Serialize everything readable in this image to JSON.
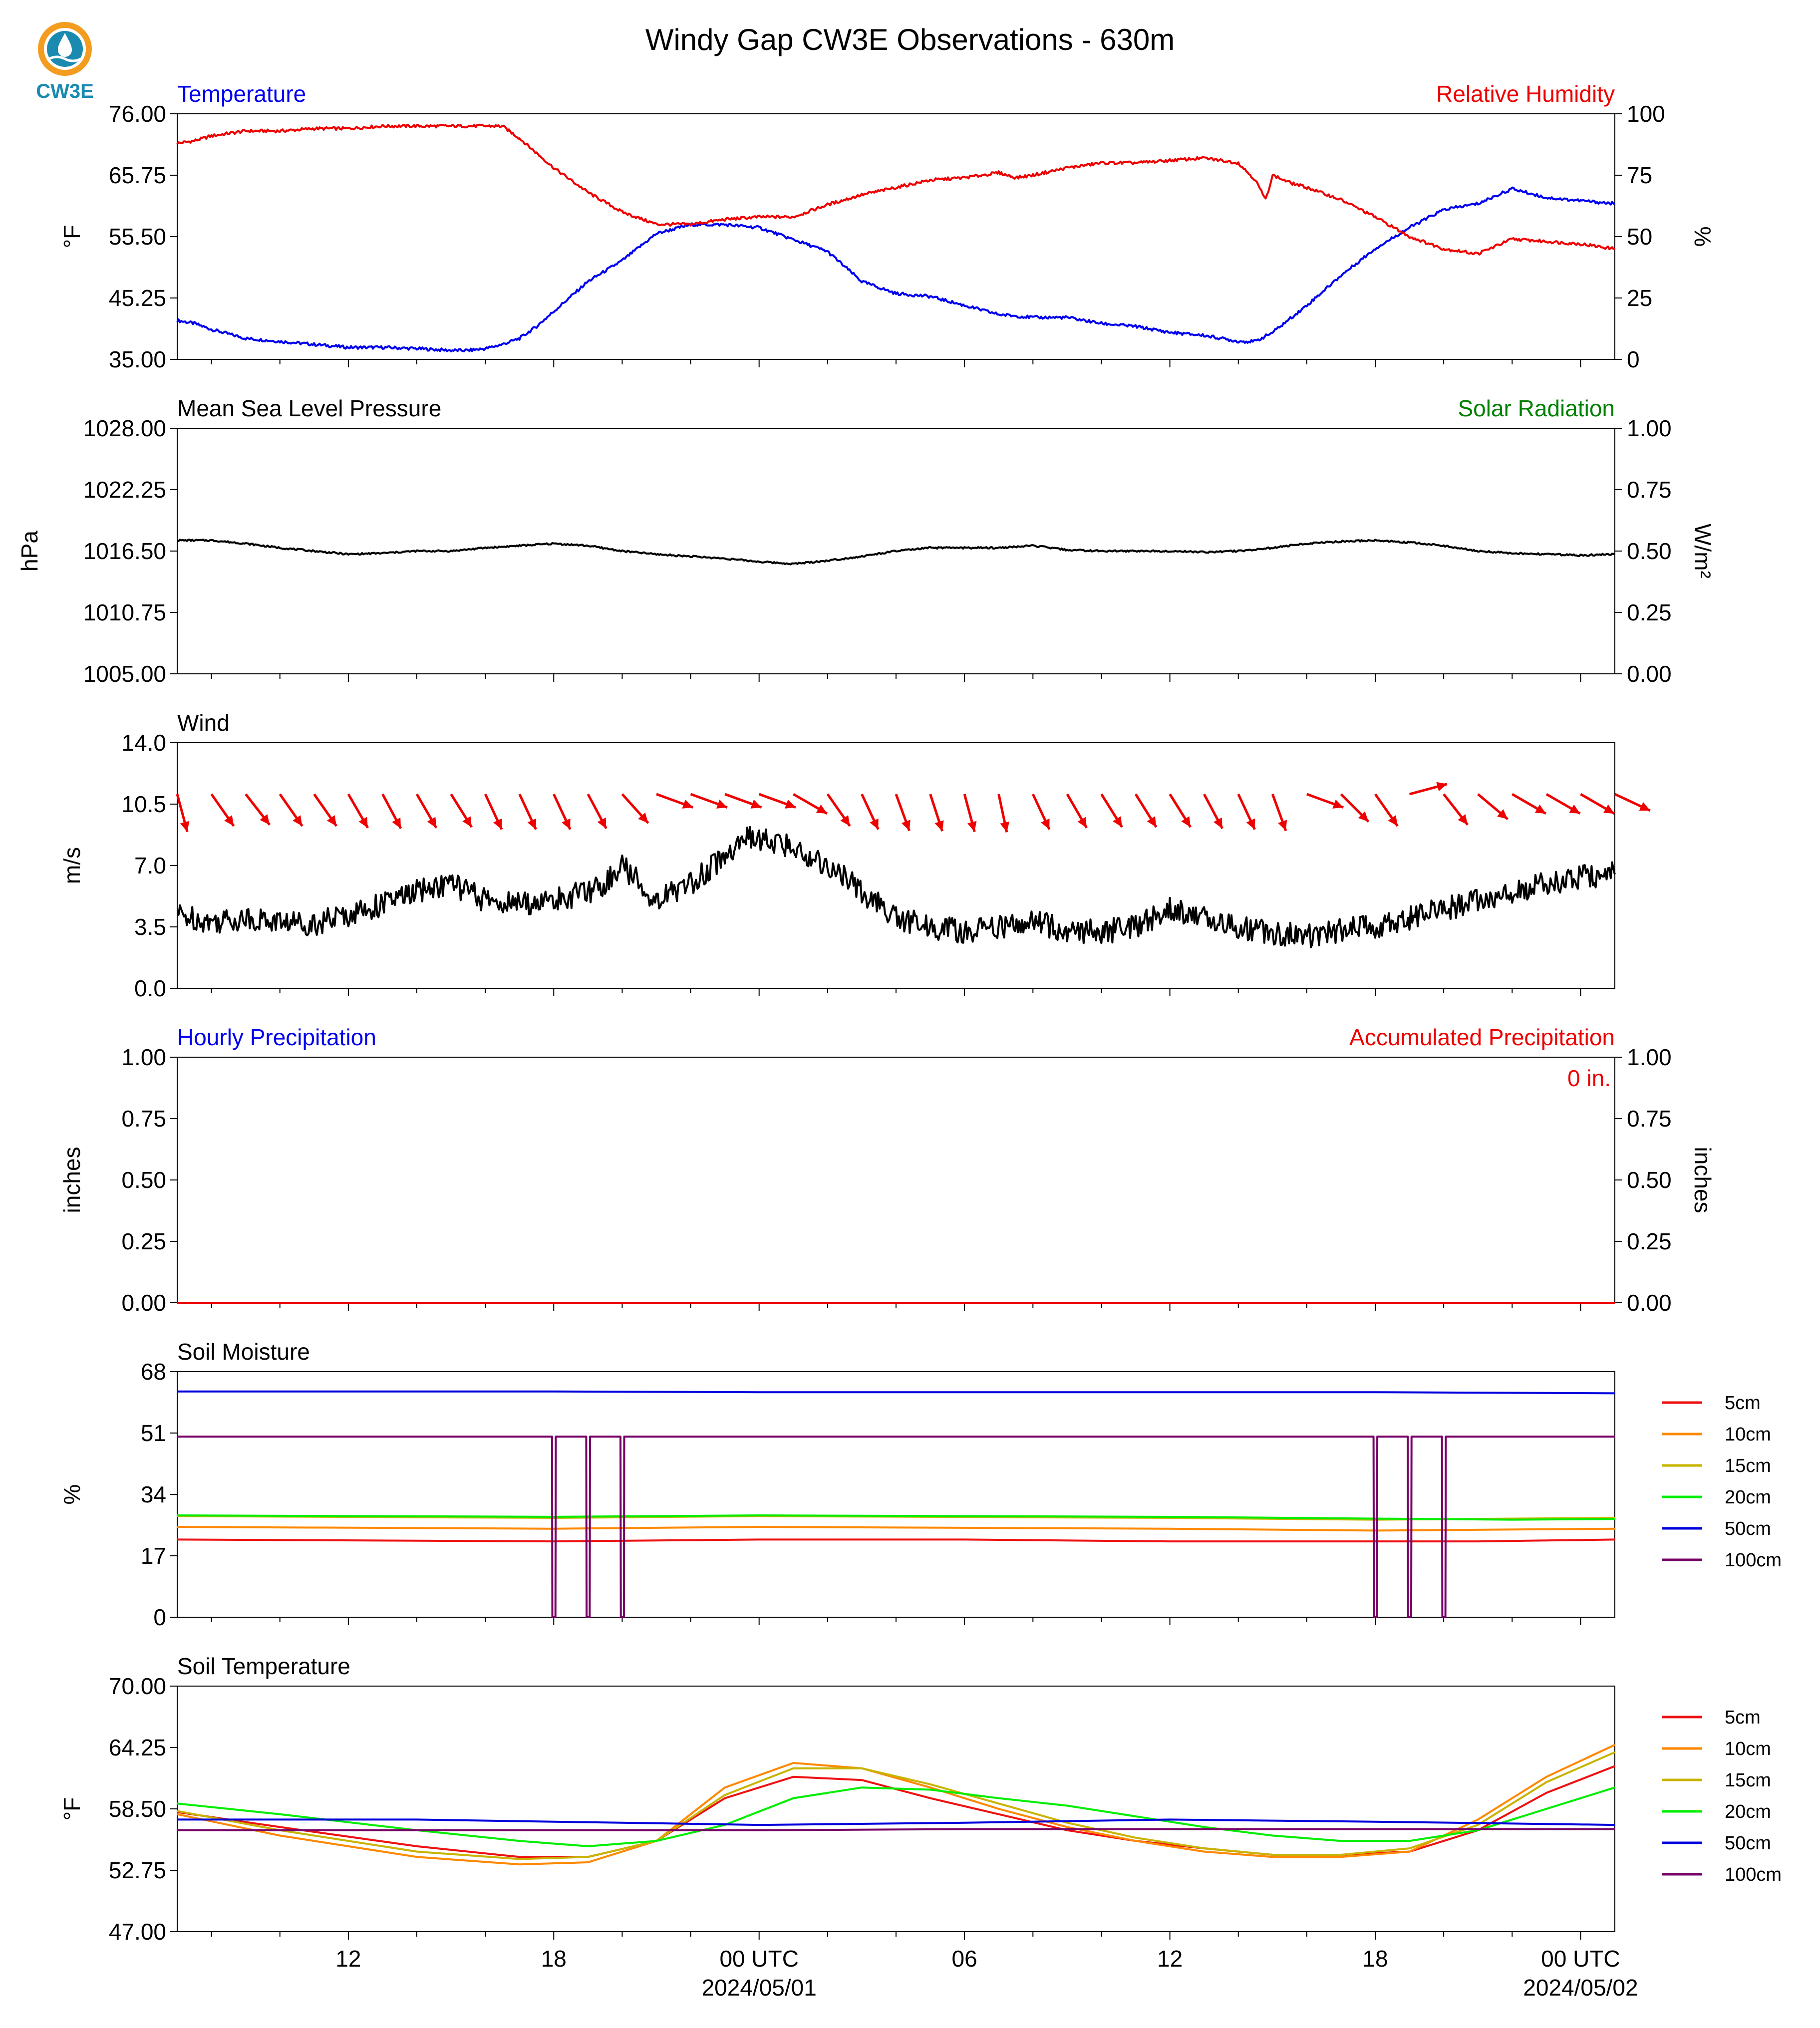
{
  "title": "Windy Gap CW3E Observations - 630m",
  "logo_text": "CW3E",
  "x_ticks": [
    {
      "hour": 12,
      "label": "12"
    },
    {
      "hour": 18,
      "label": "18"
    },
    {
      "hour": 24,
      "label": "00 UTC",
      "sublabel": "2024/05/01"
    },
    {
      "hour": 30,
      "label": "06"
    },
    {
      "hour": 36,
      "label": "12"
    },
    {
      "hour": 42,
      "label": "18"
    },
    {
      "hour": 48,
      "label": "00 UTC",
      "sublabel": "2024/05/02"
    }
  ],
  "time_axis": {
    "start_hour": 7,
    "end_hour": 49,
    "unit": "hours UTC since 2024-04-30 00:00"
  },
  "colors": {
    "blue": "#0000ee",
    "red": "#ee0000",
    "green": "#008000",
    "black": "#000000",
    "s5": "#ee1111",
    "s10": "#ff8800",
    "s15": "#c8b400",
    "s20": "#00ee00",
    "s50": "#0000dd",
    "s100": "#770066"
  },
  "chart_data": [
    {
      "id": "temp_rh",
      "type": "line",
      "left_title": "Temperature",
      "right_title": "Relative Humidity",
      "ylabel": "°F",
      "ylabel_right": "%",
      "ylim": [
        35,
        76
      ],
      "ylim_right": [
        0,
        100
      ],
      "yticks": [
        "76.00",
        "65.75",
        "55.50",
        "45.25",
        "35.00"
      ],
      "yticks_right": [
        "100",
        "75",
        "50",
        "25",
        "0"
      ],
      "series": [
        {
          "axis": "left",
          "color": "blue",
          "x": [
            7,
            7.5,
            8,
            9,
            10,
            11,
            12,
            13,
            14,
            15,
            15.5,
            16,
            16.5,
            17,
            17.5,
            18,
            19,
            20,
            21,
            22,
            23,
            24,
            25,
            25.5,
            26,
            27,
            28,
            29,
            30,
            31,
            32,
            33,
            34,
            35,
            36,
            37,
            37.5,
            38,
            38.5,
            39,
            40,
            41,
            42,
            43,
            44,
            45,
            46,
            47,
            48,
            49
          ],
          "y": [
            41.5,
            41,
            40,
            38.5,
            38,
            37.5,
            37,
            37,
            36.8,
            36.5,
            36.5,
            36.8,
            37.5,
            38.5,
            40.5,
            43,
            48,
            51.5,
            56,
            57.5,
            57.5,
            57,
            55,
            54,
            53,
            48,
            46,
            45.5,
            44,
            42.5,
            42,
            42,
            41,
            40.5,
            39.5,
            39,
            38.5,
            38,
            38,
            39.5,
            44,
            49,
            53.5,
            57,
            60,
            61,
            63.5,
            62,
            61.5,
            61
          ]
        },
        {
          "axis": "right",
          "color": "red",
          "x": [
            7,
            7.5,
            8,
            9,
            10,
            11,
            12,
            13,
            14,
            15,
            16,
            16.5,
            17,
            17.5,
            18,
            19,
            19.5,
            20,
            21,
            22,
            23,
            24,
            25,
            26,
            27,
            28,
            29,
            30,
            31,
            31.5,
            32,
            33,
            34,
            35,
            36,
            37,
            38,
            38.5,
            38.8,
            39,
            39.5,
            40,
            41,
            42,
            43,
            44,
            45,
            46,
            47,
            48,
            49
          ],
          "y": [
            88,
            89,
            91,
            93,
            93,
            94,
            94,
            95,
            95,
            95,
            95,
            95,
            90,
            84,
            78,
            68,
            64,
            60,
            55,
            55,
            57,
            58,
            58,
            63,
            67,
            70,
            73,
            74,
            76,
            74,
            75,
            78,
            80,
            80,
            81,
            82,
            80,
            73,
            65,
            75,
            72,
            70,
            65,
            58,
            50,
            45,
            43,
            49,
            48,
            47,
            45
          ]
        }
      ]
    },
    {
      "id": "pressure",
      "type": "line",
      "left_title": "Mean Sea Level Pressure",
      "right_title": "Solar Radiation",
      "ylabel": "hPa",
      "ylabel_right": "W/m²",
      "ylim": [
        1005,
        1028
      ],
      "ylim_right": [
        0,
        1
      ],
      "yticks": [
        "1028.00",
        "1022.25",
        "1016.50",
        "1010.75",
        "1005.00"
      ],
      "yticks_right": [
        "1.00",
        "0.75",
        "0.50",
        "0.25",
        "0.00"
      ],
      "series": [
        {
          "axis": "left",
          "color": "black",
          "x": [
            7,
            8,
            9,
            10,
            11,
            12,
            13,
            14,
            15,
            16,
            17,
            18,
            19,
            20,
            21,
            22,
            23,
            24,
            25,
            26,
            27,
            28,
            29,
            30,
            31,
            32,
            33,
            34,
            35,
            36,
            37,
            38,
            39,
            40,
            41,
            42,
            43,
            44,
            45,
            46,
            47,
            48,
            49
          ],
          "y": [
            1017.5,
            1017.5,
            1017.2,
            1016.8,
            1016.5,
            1016.2,
            1016.3,
            1016.5,
            1016.5,
            1016.8,
            1017,
            1017.2,
            1017,
            1016.5,
            1016.2,
            1016,
            1015.8,
            1015.5,
            1015.3,
            1015.6,
            1016,
            1016.5,
            1016.8,
            1016.8,
            1016.8,
            1017,
            1016.6,
            1016.5,
            1016.5,
            1016.5,
            1016.4,
            1016.5,
            1016.8,
            1017.2,
            1017.4,
            1017.5,
            1017.3,
            1017,
            1016.5,
            1016.3,
            1016.2,
            1016.1,
            1016.2
          ]
        }
      ]
    },
    {
      "id": "wind",
      "type": "line",
      "left_title": "Wind",
      "ylabel": "m/s",
      "ylim": [
        0,
        14
      ],
      "yticks": [
        "14.0",
        "10.5",
        "7.0",
        "3.5",
        "0.0"
      ],
      "series": [
        {
          "axis": "left",
          "color": "black",
          "x": [
            7,
            8,
            9,
            10,
            11,
            12,
            13,
            14,
            15,
            16,
            17,
            18,
            19,
            19.5,
            20,
            21,
            22,
            23,
            23.5,
            24,
            25,
            26,
            27,
            28,
            29,
            30,
            31,
            32,
            33,
            34,
            35,
            36,
            37,
            38,
            39,
            40,
            41,
            42,
            43,
            44,
            45,
            46,
            47,
            48,
            49
          ],
          "y": [
            4.2,
            3.8,
            4,
            3.8,
            3.7,
            4.2,
            4.8,
            5.5,
            6,
            5,
            4.8,
            5,
            5.5,
            6,
            7,
            5,
            6,
            7.5,
            8.5,
            8.5,
            8,
            7,
            5.5,
            4,
            3.5,
            3.2,
            3.5,
            3.8,
            3.3,
            3.2,
            3.5,
            4.5,
            4,
            3.5,
            3.2,
            3,
            3.3,
            3.5,
            4,
            4.5,
            5,
            5.5,
            6,
            6.3,
            6.5
          ]
        }
      ],
      "barbs": {
        "y": 10.5,
        "x": [
          7,
          8,
          9,
          10,
          11,
          12,
          13,
          14,
          15,
          16,
          17,
          18,
          19,
          20,
          21,
          22,
          23,
          24,
          25,
          26,
          27,
          28,
          29,
          30,
          31,
          32,
          33,
          34,
          35,
          36,
          37,
          38,
          39,
          40,
          41,
          42,
          43,
          44,
          45,
          46,
          47,
          48,
          49
        ],
        "dir": [
          75,
          55,
          52,
          55,
          55,
          60,
          62,
          60,
          58,
          65,
          65,
          65,
          62,
          48,
          20,
          20,
          20,
          20,
          30,
          55,
          65,
          70,
          72,
          75,
          78,
          65,
          60,
          58,
          58,
          58,
          62,
          65,
          70,
          20,
          45,
          55,
          -15,
          52,
          40,
          30,
          30,
          30,
          25
        ]
      }
    },
    {
      "id": "precip",
      "type": "line",
      "left_title": "Hourly Precipitation",
      "right_title": "Accumulated Precipitation",
      "ylabel": "inches",
      "ylabel_right": "inches",
      "ylim": [
        0,
        1
      ],
      "ylim_right": [
        0,
        1
      ],
      "yticks": [
        "1.00",
        "0.75",
        "0.50",
        "0.25",
        "0.00"
      ],
      "yticks_right": [
        "1.00",
        "0.75",
        "0.50",
        "0.25",
        "0.00"
      ],
      "annotation": "0 in.",
      "series": [
        {
          "axis": "left",
          "color": "red",
          "x": [
            7,
            49
          ],
          "y": [
            0,
            0
          ]
        }
      ]
    },
    {
      "id": "soil_moisture",
      "type": "line",
      "left_title": "Soil Moisture",
      "ylabel": "%",
      "ylim": [
        0,
        68
      ],
      "yticks": [
        "68",
        "51",
        "34",
        "17",
        "0"
      ],
      "legend": [
        "5cm",
        "10cm",
        "15cm",
        "20cm",
        "50cm",
        "100cm"
      ],
      "series": [
        {
          "name": "5cm",
          "color": "s5",
          "x": [
            7,
            18,
            24,
            30,
            36,
            42,
            45,
            49
          ],
          "y": [
            21.5,
            21,
            21.5,
            21.5,
            21,
            21,
            21,
            21.5
          ]
        },
        {
          "name": "10cm",
          "color": "s10",
          "x": [
            7,
            18,
            24,
            36,
            42,
            49
          ],
          "y": [
            25,
            24.5,
            25,
            24.5,
            24,
            24.5
          ]
        },
        {
          "name": "15cm",
          "color": "s15",
          "x": [
            7,
            18,
            24,
            36,
            42,
            49
          ],
          "y": [
            28,
            27.5,
            28,
            27.5,
            27,
            27.5
          ]
        },
        {
          "name": "20cm",
          "color": "s20",
          "x": [
            7,
            18,
            24,
            36,
            42,
            46,
            49
          ],
          "y": [
            28.2,
            27.8,
            28.2,
            27.8,
            27.3,
            27,
            27.2
          ]
        },
        {
          "name": "50cm",
          "color": "s50",
          "x": [
            7,
            18,
            24,
            36,
            42,
            49
          ],
          "y": [
            62.5,
            62.5,
            62.3,
            62.3,
            62.3,
            62
          ]
        },
        {
          "name": "100cm",
          "color": "s100",
          "x": [
            7,
            17.95,
            17.96,
            18.05,
            18.06,
            18.95,
            18.96,
            19.05,
            19.06,
            19.95,
            19.96,
            20.05,
            20.06,
            41.95,
            41.96,
            42.05,
            42.06,
            42.95,
            42.96,
            43.05,
            43.06,
            43.95,
            43.96,
            44.05,
            44.06,
            49
          ],
          "y": [
            50,
            50,
            0,
            0,
            50,
            50,
            0,
            0,
            50,
            50,
            0,
            0,
            50,
            50,
            0,
            0,
            50,
            50,
            0,
            0,
            50,
            50,
            0,
            0,
            50,
            50
          ]
        }
      ]
    },
    {
      "id": "soil_temp",
      "type": "line",
      "left_title": "Soil Temperature",
      "ylabel": "°F",
      "ylim": [
        47,
        70
      ],
      "yticks": [
        "70.00",
        "64.25",
        "58.50",
        "52.75",
        "47.00"
      ],
      "legend": [
        "5cm",
        "10cm",
        "15cm",
        "20cm",
        "50cm",
        "100cm"
      ],
      "series": [
        {
          "name": "5cm",
          "color": "s5",
          "x": [
            7,
            10,
            14,
            17,
            19,
            21,
            23,
            25,
            27,
            29,
            31,
            33,
            35,
            37,
            39,
            41,
            43,
            45,
            47,
            49
          ],
          "y": [
            58.2,
            56.8,
            55,
            54,
            54,
            55.5,
            59.5,
            61.5,
            61.2,
            59.5,
            58,
            56.5,
            55.5,
            54.8,
            54.2,
            54.2,
            54.5,
            56.5,
            60,
            62.5
          ]
        },
        {
          "name": "10cm",
          "color": "s10",
          "x": [
            7,
            10,
            14,
            17,
            19,
            21,
            23,
            25,
            27,
            29,
            31,
            33,
            35,
            37,
            39,
            41,
            43,
            45,
            47,
            49
          ],
          "y": [
            58,
            56,
            54,
            53.3,
            53.5,
            55.5,
            60.5,
            62.8,
            62.3,
            60.5,
            58.5,
            56.8,
            55.5,
            54.5,
            54,
            54,
            54.5,
            57.5,
            61.5,
            64.5
          ]
        },
        {
          "name": "15cm",
          "color": "s15",
          "x": [
            7,
            10,
            14,
            17,
            19,
            21,
            23,
            25,
            27,
            29,
            31,
            33,
            35,
            37,
            39,
            41,
            43,
            45,
            47,
            49
          ],
          "y": [
            58.3,
            56.5,
            54.5,
            53.8,
            54,
            55.5,
            59.8,
            62.3,
            62.3,
            60.8,
            59,
            57.2,
            55.8,
            54.8,
            54.2,
            54.2,
            54.8,
            57,
            61,
            63.8
          ]
        },
        {
          "name": "20cm",
          "color": "s20",
          "x": [
            7,
            10,
            14,
            17,
            19,
            21,
            23,
            25,
            27,
            29,
            31,
            33,
            35,
            37,
            39,
            41,
            43,
            45,
            47,
            49
          ],
          "y": [
            59,
            58,
            56.5,
            55.5,
            55,
            55.5,
            57,
            59.5,
            60.5,
            60.3,
            59.5,
            58.8,
            57.8,
            56.8,
            56,
            55.5,
            55.5,
            56.5,
            58.5,
            60.5
          ]
        },
        {
          "name": "50cm",
          "color": "s50",
          "x": [
            7,
            14,
            20,
            24,
            30,
            36,
            42,
            49
          ],
          "y": [
            57.5,
            57.5,
            57.2,
            57,
            57.2,
            57.5,
            57.3,
            57
          ]
        },
        {
          "name": "100cm",
          "color": "s100",
          "x": [
            7,
            14,
            20,
            24,
            30,
            36,
            42,
            49
          ],
          "y": [
            56.5,
            56.5,
            56.5,
            56.5,
            56.6,
            56.6,
            56.6,
            56.6
          ]
        }
      ]
    }
  ]
}
